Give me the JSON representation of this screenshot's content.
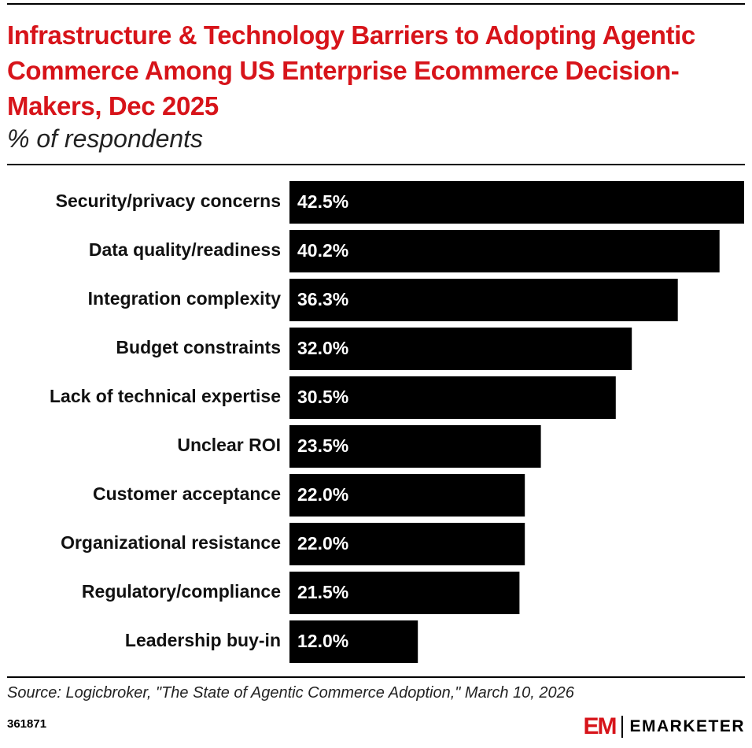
{
  "chart_data": {
    "type": "bar",
    "orientation": "horizontal",
    "title": "Infrastructure & Technology Barriers to Adopting Agentic Commerce Among US Enterprise Ecommerce Decision-Makers, Dec 2025",
    "subtitle": "% of respondents",
    "categories": [
      "Security/privacy concerns",
      "Data quality/readiness",
      "Integration complexity",
      "Budget constraints",
      "Lack of technical expertise",
      "Unclear ROI",
      "Customer acceptance",
      "Organizational resistance",
      "Regulatory/compliance",
      "Leadership buy-in"
    ],
    "values": [
      42.5,
      40.2,
      36.3,
      32.0,
      30.5,
      23.5,
      22.0,
      22.0,
      21.5,
      12.0
    ],
    "value_labels": [
      "42.5%",
      "40.2%",
      "36.3%",
      "32.0%",
      "30.5%",
      "23.5%",
      "22.0%",
      "22.0%",
      "21.5%",
      "12.0%"
    ],
    "color": "#000000",
    "source": "Source: Logicbroker, \"The State of Agentic Commerce Adoption,\" March 10, 2026",
    "chart_id": "361871",
    "logo_mark": "EM",
    "brand": "EMARKETER"
  }
}
